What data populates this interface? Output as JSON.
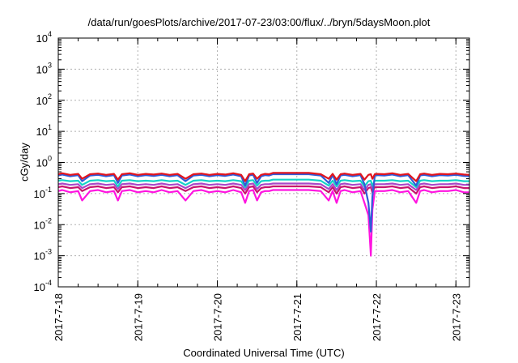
{
  "chart_data": {
    "type": "line",
    "title": "/data/run/goesPlots/archive/2017-07-23/03:00/flux/../bryn/5daysMoon.plot",
    "xlabel": "Coordinated Universal Time (UTC)",
    "ylabel": "cGy/day",
    "yscale": "log",
    "ylim": [
      0.0001,
      10000
    ],
    "xlim": [
      0,
      5.17
    ],
    "grid": true,
    "y_ticks": [
      {
        "value": 0.0001,
        "base": "10",
        "exp": "-4"
      },
      {
        "value": 0.001,
        "base": "10",
        "exp": "-3"
      },
      {
        "value": 0.01,
        "base": "10",
        "exp": "-2"
      },
      {
        "value": 0.1,
        "base": "10",
        "exp": "-1"
      },
      {
        "value": 1,
        "base": "10",
        "exp": "0"
      },
      {
        "value": 10,
        "base": "10",
        "exp": "1"
      },
      {
        "value": 100,
        "base": "10",
        "exp": "2"
      },
      {
        "value": 1000,
        "base": "10",
        "exp": "3"
      },
      {
        "value": 10000,
        "base": "10",
        "exp": "4"
      }
    ],
    "x_ticks": [
      {
        "value": 0,
        "label": "2017-7-18"
      },
      {
        "value": 1,
        "label": "2017-7-19"
      },
      {
        "value": 2,
        "label": "2017-7-20"
      },
      {
        "value": 3,
        "label": "2017-7-21"
      },
      {
        "value": 4,
        "label": "2017-7-22"
      },
      {
        "value": 5,
        "label": "2017-7-23"
      }
    ],
    "x": [
      0.0,
      0.05,
      0.15,
      0.25,
      0.3,
      0.4,
      0.5,
      0.6,
      0.7,
      0.75,
      0.8,
      0.9,
      1.0,
      1.1,
      1.2,
      1.3,
      1.4,
      1.5,
      1.6,
      1.7,
      1.8,
      1.9,
      2.0,
      2.1,
      2.2,
      2.3,
      2.35,
      2.4,
      2.45,
      2.5,
      2.55,
      2.6,
      2.65,
      2.7,
      3.0,
      3.15,
      3.3,
      3.4,
      3.45,
      3.5,
      3.55,
      3.6,
      3.7,
      3.8,
      3.85,
      3.9,
      3.93,
      3.95,
      3.98,
      4.0,
      4.1,
      4.2,
      4.3,
      4.4,
      4.5,
      4.55,
      4.6,
      4.7,
      4.8,
      4.9,
      5.0,
      5.1,
      5.17
    ],
    "series": [
      {
        "color": "#e0141e",
        "values": [
          0.42,
          0.45,
          0.4,
          0.43,
          0.3,
          0.42,
          0.44,
          0.4,
          0.43,
          0.28,
          0.42,
          0.45,
          0.4,
          0.43,
          0.41,
          0.44,
          0.4,
          0.43,
          0.3,
          0.42,
          0.44,
          0.4,
          0.43,
          0.41,
          0.45,
          0.4,
          0.25,
          0.42,
          0.44,
          0.3,
          0.4,
          0.43,
          0.42,
          0.46,
          0.46,
          0.46,
          0.42,
          0.3,
          0.43,
          0.28,
          0.42,
          0.44,
          0.4,
          0.43,
          0.28,
          0.4,
          0.42,
          0.3,
          0.42,
          0.43,
          0.42,
          0.45,
          0.4,
          0.43,
          0.25,
          0.42,
          0.44,
          0.4,
          0.43,
          0.42,
          0.44,
          0.41,
          0.4
        ]
      },
      {
        "color": "#2f5bd8",
        "values": [
          0.38,
          0.41,
          0.36,
          0.39,
          0.25,
          0.38,
          0.4,
          0.36,
          0.39,
          0.22,
          0.38,
          0.41,
          0.36,
          0.39,
          0.37,
          0.4,
          0.36,
          0.39,
          0.25,
          0.38,
          0.4,
          0.36,
          0.39,
          0.37,
          0.41,
          0.36,
          0.18,
          0.38,
          0.4,
          0.22,
          0.36,
          0.39,
          0.38,
          0.42,
          0.42,
          0.42,
          0.38,
          0.22,
          0.39,
          0.2,
          0.38,
          0.4,
          0.36,
          0.39,
          0.2,
          0.05,
          0.006,
          0.08,
          0.38,
          0.39,
          0.38,
          0.41,
          0.36,
          0.39,
          0.18,
          0.38,
          0.4,
          0.36,
          0.39,
          0.38,
          0.4,
          0.37,
          0.36
        ]
      },
      {
        "color": "#14d2c8",
        "values": [
          0.26,
          0.27,
          0.25,
          0.26,
          0.19,
          0.26,
          0.27,
          0.25,
          0.26,
          0.17,
          0.26,
          0.27,
          0.25,
          0.26,
          0.25,
          0.27,
          0.25,
          0.26,
          0.19,
          0.26,
          0.27,
          0.25,
          0.26,
          0.25,
          0.27,
          0.25,
          0.16,
          0.26,
          0.27,
          0.18,
          0.25,
          0.26,
          0.26,
          0.28,
          0.28,
          0.28,
          0.26,
          0.18,
          0.26,
          0.17,
          0.26,
          0.27,
          0.25,
          0.26,
          0.17,
          0.25,
          0.26,
          0.18,
          0.26,
          0.26,
          0.26,
          0.27,
          0.25,
          0.26,
          0.16,
          0.26,
          0.27,
          0.25,
          0.26,
          0.26,
          0.27,
          0.25,
          0.25
        ]
      },
      {
        "color": "#aa46c8",
        "values": [
          0.2,
          0.21,
          0.19,
          0.2,
          0.15,
          0.2,
          0.21,
          0.19,
          0.2,
          0.14,
          0.2,
          0.21,
          0.19,
          0.2,
          0.19,
          0.21,
          0.19,
          0.2,
          0.15,
          0.2,
          0.21,
          0.19,
          0.2,
          0.19,
          0.21,
          0.19,
          0.13,
          0.2,
          0.21,
          0.14,
          0.19,
          0.2,
          0.2,
          0.21,
          0.21,
          0.21,
          0.2,
          0.14,
          0.2,
          0.13,
          0.2,
          0.21,
          0.19,
          0.2,
          0.13,
          0.19,
          0.2,
          0.14,
          0.2,
          0.2,
          0.2,
          0.21,
          0.19,
          0.2,
          0.13,
          0.2,
          0.21,
          0.19,
          0.2,
          0.2,
          0.21,
          0.19,
          0.19
        ]
      },
      {
        "color": "#c8146e",
        "values": [
          0.16,
          0.17,
          0.15,
          0.16,
          0.12,
          0.16,
          0.17,
          0.15,
          0.16,
          0.11,
          0.16,
          0.17,
          0.15,
          0.16,
          0.15,
          0.17,
          0.15,
          0.16,
          0.12,
          0.16,
          0.17,
          0.15,
          0.16,
          0.15,
          0.17,
          0.15,
          0.1,
          0.16,
          0.17,
          0.11,
          0.15,
          0.16,
          0.16,
          0.17,
          0.17,
          0.17,
          0.16,
          0.11,
          0.16,
          0.1,
          0.16,
          0.17,
          0.15,
          0.16,
          0.1,
          0.15,
          0.16,
          0.11,
          0.16,
          0.16,
          0.16,
          0.17,
          0.15,
          0.16,
          0.1,
          0.16,
          0.17,
          0.15,
          0.16,
          0.16,
          0.17,
          0.15,
          0.15
        ]
      },
      {
        "color": "#ff14e0",
        "values": [
          0.12,
          0.13,
          0.11,
          0.12,
          0.06,
          0.12,
          0.13,
          0.11,
          0.12,
          0.06,
          0.12,
          0.13,
          0.11,
          0.12,
          0.11,
          0.13,
          0.11,
          0.12,
          0.06,
          0.12,
          0.13,
          0.11,
          0.12,
          0.11,
          0.13,
          0.11,
          0.05,
          0.12,
          0.13,
          0.06,
          0.11,
          0.12,
          0.12,
          0.13,
          0.13,
          0.13,
          0.12,
          0.06,
          0.12,
          0.05,
          0.12,
          0.13,
          0.11,
          0.12,
          0.05,
          0.02,
          0.001,
          0.03,
          0.12,
          0.12,
          0.12,
          0.13,
          0.11,
          0.12,
          0.05,
          0.12,
          0.13,
          0.11,
          0.12,
          0.12,
          0.13,
          0.11,
          0.11
        ]
      }
    ]
  }
}
